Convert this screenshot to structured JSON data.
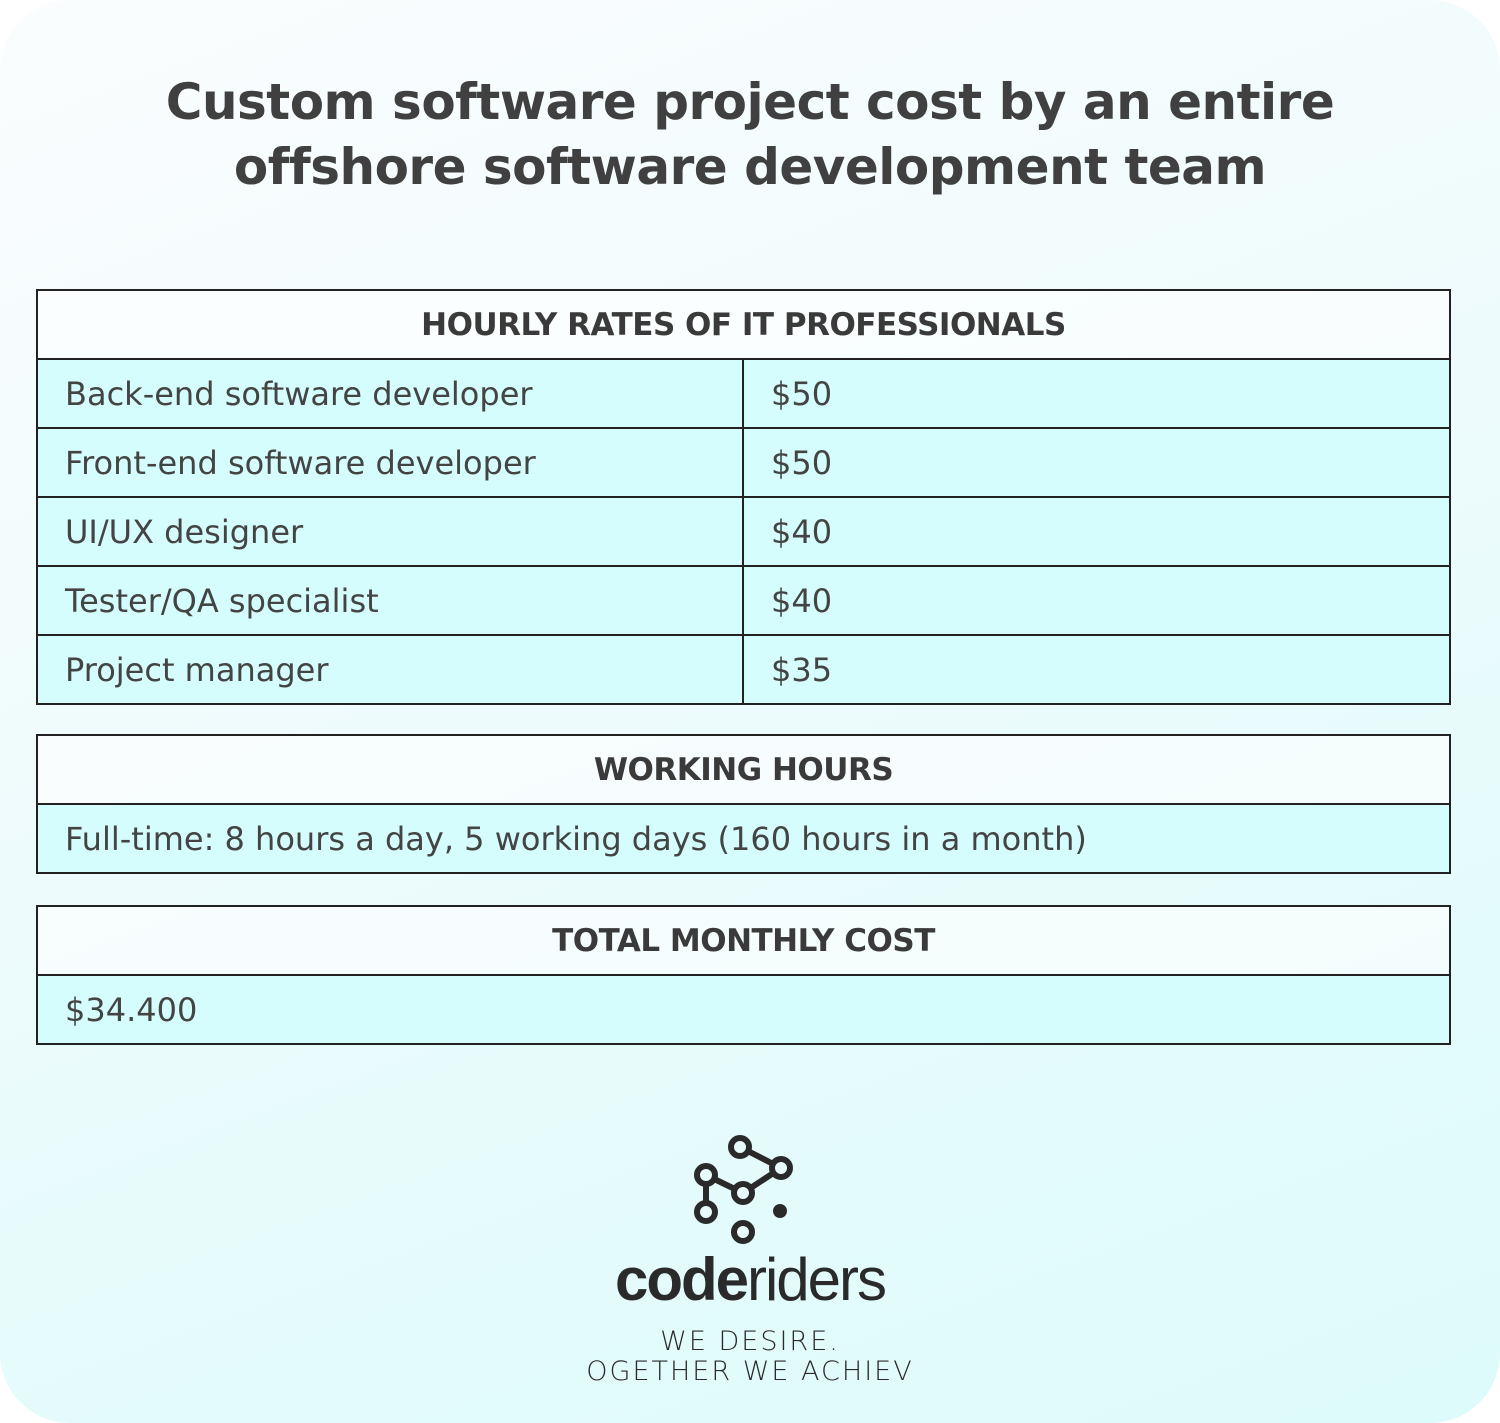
{
  "title": {
    "line1": "Custom software project cost by an entire",
    "line2": "offshore software development team"
  },
  "rates": {
    "header": "HOURLY RATES OF IT PROFESSIONALS",
    "rows": [
      {
        "role": "Back-end software developer",
        "rate": "$50"
      },
      {
        "role": "Front-end software developer",
        "rate": "$50"
      },
      {
        "role": "UI/UX designer",
        "rate": "$40"
      },
      {
        "role": "Tester/QA specialist",
        "rate": "$40"
      },
      {
        "role": "Project manager",
        "rate": "$35"
      }
    ]
  },
  "hours": {
    "header": "WORKING HOURS",
    "text": "Full-time: 8 hours a day, 5 working days (160 hours in a month)"
  },
  "total": {
    "header": "TOTAL MONTHLY COST",
    "value": "$34.400"
  },
  "logo": {
    "bold": "code",
    "light": "riders",
    "tagline1": "WE DESIRE.",
    "tagline2": "OGETHER WE ACHIEV"
  },
  "colors": {
    "row_bg": "#d5fdfd",
    "text": "#444444",
    "border": "#222222"
  }
}
